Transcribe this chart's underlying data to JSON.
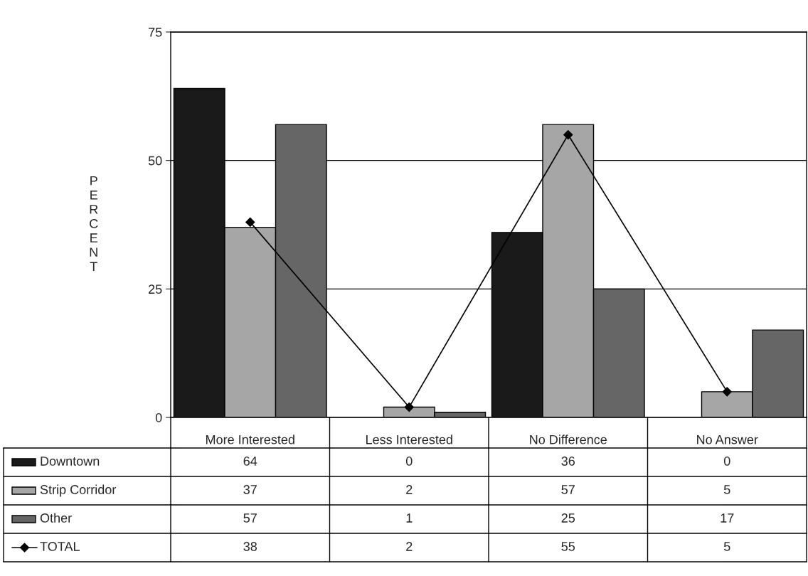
{
  "chart_data": {
    "type": "bar",
    "categories": [
      "More Interested",
      "Less Interested",
      "No Difference",
      "No Answer"
    ],
    "ylabel": "PERCENT",
    "ylim": [
      0,
      75
    ],
    "yticks": [
      0,
      25,
      50,
      75
    ],
    "grid": "y",
    "data_labels": true,
    "legend": "bottom left",
    "series": [
      {
        "name": "Downtown",
        "color": "#1a1a1a",
        "values": [
          64,
          0,
          36,
          0
        ]
      },
      {
        "name": "Strip Corridor",
        "color": "#a6a6a6",
        "values": [
          37,
          2,
          57,
          5
        ]
      },
      {
        "name": "Other",
        "color": "#666666",
        "values": [
          57,
          1,
          25,
          17
        ]
      },
      {
        "name": "TOTAL",
        "type": "line",
        "color": "#000000",
        "marker": "diamond",
        "line_style": "solid",
        "values": [
          38,
          2,
          55,
          5
        ]
      }
    ]
  }
}
